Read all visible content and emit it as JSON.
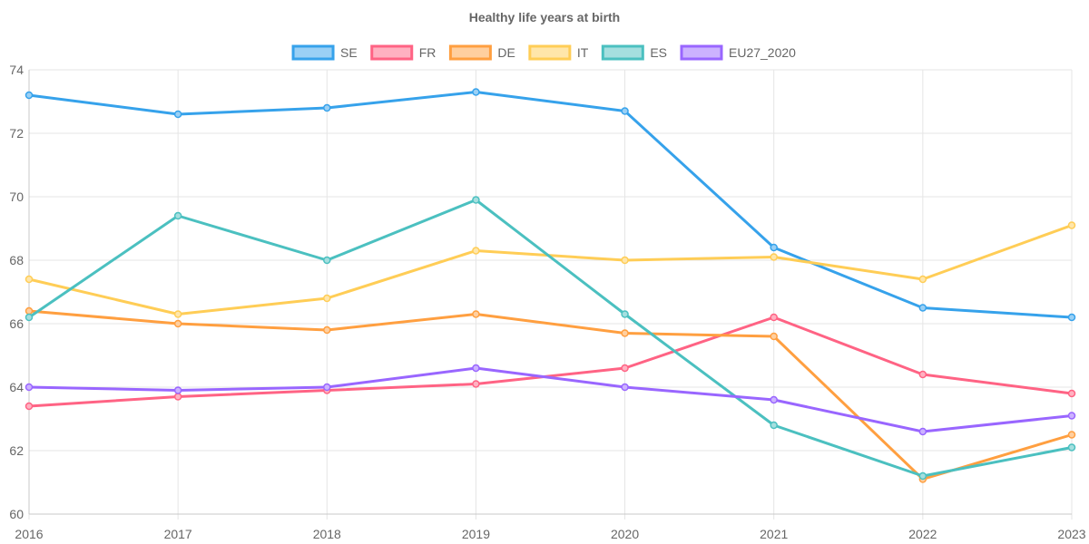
{
  "chart_data": {
    "type": "line",
    "title": "Healthy life years at birth",
    "xlabel": "",
    "ylabel": "",
    "categories": [
      "2016",
      "2017",
      "2018",
      "2019",
      "2020",
      "2021",
      "2022",
      "2023"
    ],
    "ylim": [
      60,
      74
    ],
    "yticks": [
      60,
      62,
      64,
      66,
      68,
      70,
      72,
      74
    ],
    "grid": true,
    "legend_position": "top-center",
    "series": [
      {
        "name": "SE",
        "color": "#36a2eb",
        "fill": "#9ad0f5",
        "values": [
          73.2,
          72.6,
          72.8,
          73.3,
          72.7,
          68.4,
          66.5,
          66.2
        ]
      },
      {
        "name": "FR",
        "color": "#ff6384",
        "fill": "#ffb1c1",
        "values": [
          63.4,
          63.7,
          63.9,
          64.1,
          64.6,
          66.2,
          64.4,
          63.8
        ]
      },
      {
        "name": "DE",
        "color": "#ff9f40",
        "fill": "#ffcf9f",
        "values": [
          66.4,
          66.0,
          65.8,
          66.3,
          65.7,
          65.6,
          61.1,
          62.5
        ]
      },
      {
        "name": "IT",
        "color": "#ffcd56",
        "fill": "#ffe6aa",
        "values": [
          67.4,
          66.3,
          66.8,
          68.3,
          68.0,
          68.1,
          67.4,
          69.1
        ]
      },
      {
        "name": "ES",
        "color": "#4bc0c0",
        "fill": "#a5dfdf",
        "values": [
          66.2,
          69.4,
          68.0,
          69.9,
          66.3,
          62.8,
          61.2,
          62.1
        ]
      },
      {
        "name": "EU27_2020",
        "color": "#9966ff",
        "fill": "#ccb2ff",
        "values": [
          64.0,
          63.9,
          64.0,
          64.6,
          64.0,
          63.6,
          62.6,
          63.1
        ]
      }
    ]
  }
}
